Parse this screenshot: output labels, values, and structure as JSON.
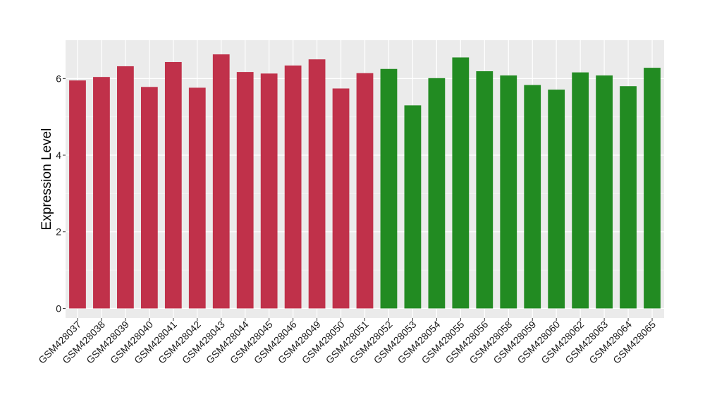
{
  "chart_data": {
    "type": "bar",
    "title": "",
    "xlabel": "",
    "ylabel": "Expression Level",
    "ylim": [
      -0.25,
      7.0
    ],
    "y_ticks": [
      0,
      2,
      4,
      6
    ],
    "grid": true,
    "legend": "none",
    "categories": [
      "GSM428037",
      "GSM428038",
      "GSM428039",
      "GSM428040",
      "GSM428041",
      "GSM428042",
      "GSM428043",
      "GSM428044",
      "GSM428045",
      "GSM428046",
      "GSM428049",
      "GSM428050",
      "GSM428051",
      "GSM428052",
      "GSM428053",
      "GSM428054",
      "GSM428055",
      "GSM428056",
      "GSM428058",
      "GSM428059",
      "GSM428060",
      "GSM428062",
      "GSM428063",
      "GSM428064",
      "GSM428065"
    ],
    "values": [
      5.95,
      6.04,
      6.32,
      5.78,
      6.43,
      5.76,
      6.63,
      6.17,
      6.13,
      6.34,
      6.5,
      5.74,
      6.14,
      6.25,
      5.3,
      6.01,
      6.55,
      6.19,
      6.08,
      5.83,
      5.71,
      6.16,
      6.08,
      5.8,
      6.28
    ],
    "group_sizes": [
      13,
      12
    ],
    "colors": {
      "groups": [
        "#C0314A",
        "#228B22"
      ],
      "panel": "#EBEBEB",
      "grid_major": "#FFFFFF",
      "grid_minor": "#F4F4F4"
    }
  }
}
